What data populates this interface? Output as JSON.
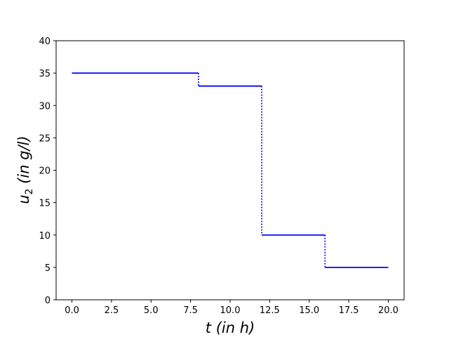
{
  "chart_data": {
    "type": "line",
    "xlabel": "t (in h)",
    "ylabel": {
      "main": "u",
      "subscript": "2",
      "rest": " (in g/l)"
    },
    "xlim": [
      -1.0,
      21.0
    ],
    "ylim": [
      0,
      40
    ],
    "xticks": [
      "0.0",
      "2.5",
      "5.0",
      "7.5",
      "10.0",
      "12.5",
      "15.0",
      "17.5",
      "20.0"
    ],
    "yticks": [
      "0",
      "5",
      "10",
      "15",
      "20",
      "25",
      "30",
      "35",
      "40"
    ],
    "grid": false,
    "line_color": "#0000ff",
    "segments": [
      {
        "x": [
          0,
          8
        ],
        "y": 35
      },
      {
        "x": [
          8,
          12
        ],
        "y": 33
      },
      {
        "x": [
          12,
          16
        ],
        "y": 10
      },
      {
        "x": [
          16,
          20
        ],
        "y": 5
      }
    ]
  }
}
